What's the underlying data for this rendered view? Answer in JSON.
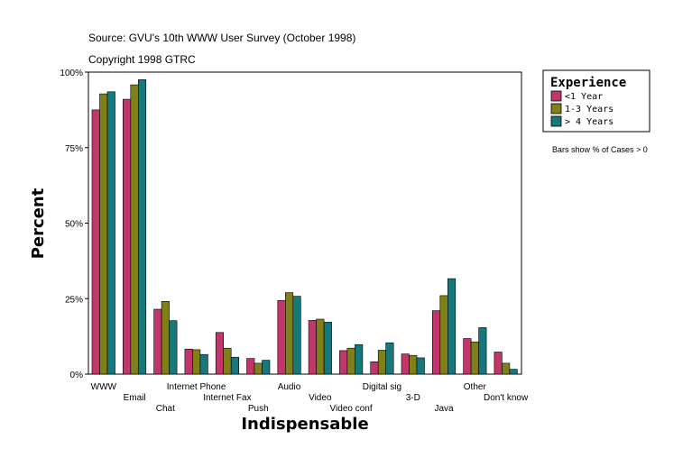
{
  "source_line": "Source: GVU's 10th WWW User Survey (October 1998)",
  "copyright_line": "Copyright 1998 GTRC",
  "note": "Bars show % of Cases > 0",
  "colors": {
    "series1": "#c0386b",
    "series2": "#808019",
    "series3": "#16787a"
  },
  "chart_data": {
    "type": "bar",
    "title": "",
    "xlabel": "Indispensable",
    "ylabel": "Percent",
    "ylim": [
      0,
      100
    ],
    "yticks": [
      "0%",
      "25%",
      "50%",
      "75%",
      "100%"
    ],
    "legend": {
      "title": "Experience",
      "position": "top-right"
    },
    "categories": [
      "WWW",
      "Email",
      "Chat",
      "Internet Phone",
      "Internet Fax",
      "Push",
      "Audio",
      "Video",
      "Video conf",
      "Digital sig",
      "3-D",
      "Java",
      "Other",
      "Don't know"
    ],
    "series": [
      {
        "name": "<1 Year",
        "values": [
          87.5,
          91,
          21.5,
          8.3,
          13.8,
          5.2,
          24.4,
          17.8,
          7.8,
          4.1,
          6.7,
          21,
          11.8,
          7.3
        ]
      },
      {
        "name": "1-3 Years",
        "values": [
          92.8,
          95.8,
          24.1,
          8.1,
          8.6,
          3.6,
          27,
          18.2,
          8.6,
          7.9,
          6.2,
          26,
          10.7,
          3.6
        ]
      },
      {
        "name": "> 4 Years",
        "values": [
          93.5,
          97.5,
          17.7,
          6.5,
          5.6,
          4.6,
          25.8,
          17.2,
          9.8,
          10.4,
          5.4,
          31.6,
          15.4,
          1.6
        ]
      }
    ]
  }
}
